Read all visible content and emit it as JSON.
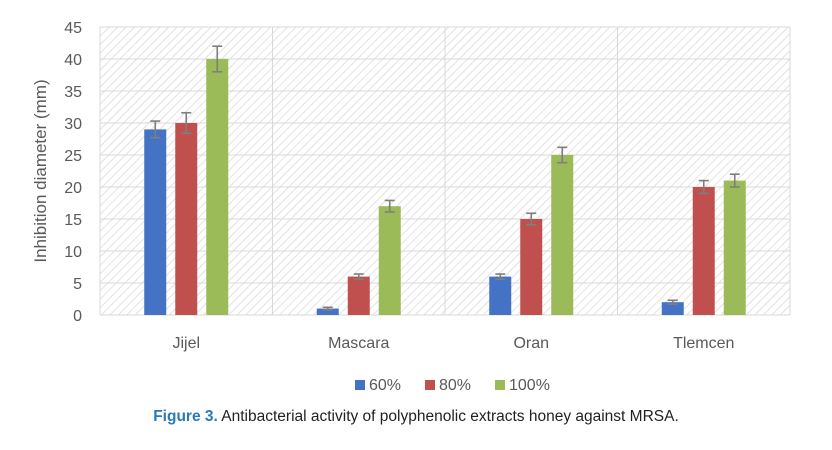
{
  "chart_data": {
    "type": "bar",
    "categories": [
      "Jijel",
      "Mascara",
      "Oran",
      "Tlemcen"
    ],
    "series": [
      {
        "name": "60%",
        "color": "#4472c4",
        "values": [
          29,
          1,
          6,
          2
        ],
        "errors": [
          1.3,
          0.2,
          0.4,
          0.3
        ]
      },
      {
        "name": "80%",
        "color": "#c0504d",
        "values": [
          30,
          6,
          15,
          20
        ],
        "errors": [
          1.6,
          0.4,
          0.9,
          1.0
        ]
      },
      {
        "name": "100%",
        "color": "#9bbb59",
        "values": [
          40,
          17,
          25,
          21
        ],
        "errors": [
          2.0,
          0.9,
          1.2,
          1.0
        ]
      }
    ],
    "ylabel": "Inhibition diameter (mm)",
    "xlabel": "",
    "ylim": [
      0,
      45
    ],
    "yticks": [
      0,
      5,
      10,
      15,
      20,
      25,
      30,
      35,
      40,
      45
    ],
    "grid": true,
    "legend_position": "bottom",
    "background_pattern": "diagonal-hatch"
  },
  "caption": {
    "prefix": "Figure 3.",
    "text": " Antibacterial activity of polyphenolic extracts honey against MRSA."
  }
}
